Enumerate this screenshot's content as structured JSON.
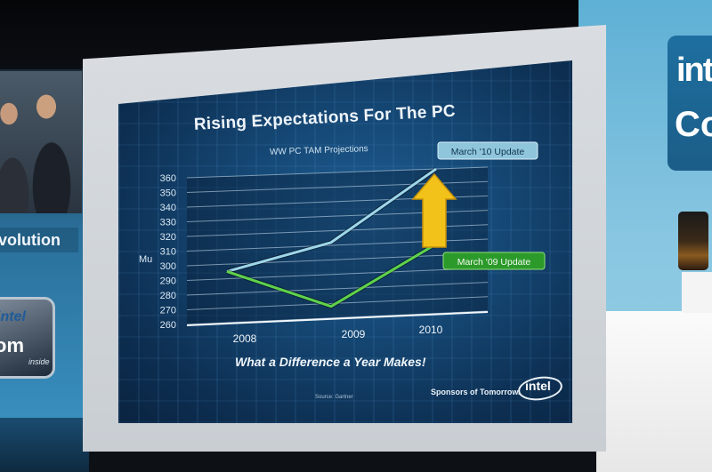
{
  "slide": {
    "title": "Rising Expectations For The PC",
    "subtitle": "WW PC TAM Projections",
    "tagline": "What a Difference a Year Makes!",
    "source": "Source: Gartner",
    "sponsors": "Sponsors of Tomorrow.",
    "logo": "intel"
  },
  "left_banner": {
    "text": "volution",
    "badge_brand": "intel",
    "badge_product": "om",
    "badge_suffix": "inside"
  },
  "right_sign": {
    "line1": "inte",
    "line2": "Co"
  },
  "chart_data": {
    "type": "line",
    "title": "Rising Expectations For The PC",
    "subtitle": "WW PC TAM Projections",
    "ylabel": "Mu",
    "x": [
      "2008",
      "2009",
      "2010"
    ],
    "yticks": [
      260,
      270,
      280,
      290,
      300,
      310,
      320,
      330,
      340,
      350,
      360
    ],
    "ylim": [
      260,
      360
    ],
    "series": [
      {
        "name": "March '10 Update",
        "values": [
          295,
          312,
          360
        ],
        "color": "#9ed6ea"
      },
      {
        "name": "March '09 Update",
        "values": [
          295,
          268,
          308
        ],
        "color": "#5fd24a"
      }
    ]
  }
}
